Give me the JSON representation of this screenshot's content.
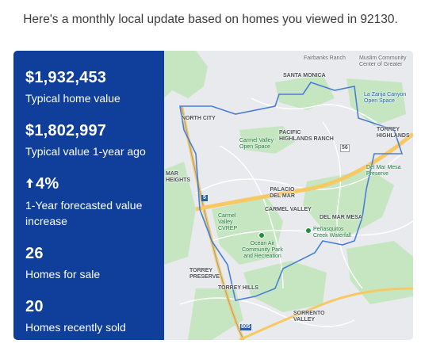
{
  "intro_text": "Here's a monthly local update based on homes you viewed in 92130.",
  "stats": [
    {
      "value": "$1,932,453",
      "label": "Typical home value"
    },
    {
      "value": "$1,802,997",
      "label": "Typical value 1-year ago"
    },
    {
      "value": "4%",
      "label": "1-Year forecasted value increase",
      "icon": "arrow-up-icon"
    },
    {
      "value": "26",
      "label": "Homes for sale"
    },
    {
      "value": "20",
      "label": "Homes recently sold"
    }
  ],
  "map": {
    "labels": {
      "santa_monica": "SANTA MONICA",
      "fairbanks_ranch": "Fairbanks Ranch",
      "muslim_center": "Muslim Community Center of Greater",
      "la_zanja": "La Zanja Canyon Open Space",
      "north_city": "NORTH CITY",
      "torrey_highlands": "TORREY HIGHLANDS",
      "carmel_valley_open_space": "Carmel Valley Open Space",
      "pacific_highlands_ranch": "PACIFIC HIGHLANDS RANCH",
      "del_mar_mesa_preserve": "Del Mar Mesa Preserve",
      "mar_heights": "MAR HEIGHTS",
      "palacio_del_mar": "PALACIO DEL MAR",
      "carmel_valley": "CARMEL VALLEY",
      "del_mar_mesa": "DEL MAR MESA",
      "carmel_valley_cvrep": "Carmel Valley CVREP",
      "penasquitos_creek": "Peñasquitos Creek Waterfall",
      "ocean_air_park": "Ocean Air Community Park and Recreation",
      "torrey_preserve": "TORREY PRESERVE",
      "torrey_hills": "TORREY HILLS",
      "sorrento_valley": "SORRENTO VALLEY",
      "hwy_56": "56",
      "hwy_5": "5",
      "hwy_805": "805"
    }
  },
  "colors": {
    "panel_bg": "#0f3f9b",
    "boundary": "#4a7fd6",
    "park": "#c6e6c2",
    "freeway": "#f7c964"
  }
}
